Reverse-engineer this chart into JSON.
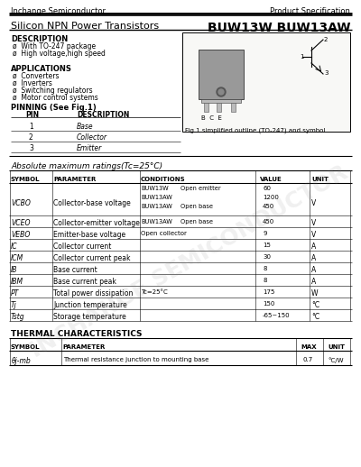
{
  "company": "Inchange Semiconductor",
  "product_spec": "Product Specification",
  "product_type": "Silicon NPN Power Transistors",
  "part_number": "BUW13W BUW13AW",
  "description_title": "DESCRIPTION",
  "description_items": [
    "ø  With TO-247 package",
    "ø  High voltage,high speed"
  ],
  "applications_title": "APPLICATIONS",
  "applications_items": [
    "ø  Converters",
    "ø  Inverters",
    "ø  Switching regulators",
    "ø  Motor control systems"
  ],
  "pinning_title": "PINNING (See Fig.1)",
  "pinning_headers": [
    "PIN",
    "DESCRIPTION"
  ],
  "pinning_rows": [
    [
      "1",
      "Base"
    ],
    [
      "2",
      "Collector"
    ],
    [
      "3",
      "Emitter"
    ]
  ],
  "fig_caption": "Fig.1 simplified outline (TO-247) and symbol",
  "abs_max_title": "Absolute maximum ratings(Tc=25°C)",
  "abs_headers": [
    "SYMBOL",
    "PARAMETER",
    "CONDITIONS",
    "VALUE",
    "UNIT"
  ],
  "vcbo_rows": [
    {
      "part": "BUW13W",
      "cond": "Open emitter",
      "val": "60"
    },
    {
      "part": "BUW13AW",
      "cond": "",
      "val": "1200"
    },
    {
      "part": "BUW13AW",
      "cond": "Open base",
      "val": "450"
    }
  ],
  "vceo_rows": [
    {
      "part": "BUW13AW",
      "cond": "Open base",
      "val": "450"
    }
  ],
  "simple_rows": [
    {
      "sym": "VEBO",
      "param": "Emitter-base voltage",
      "cond": "Open collector",
      "val": "9",
      "unit": "V"
    },
    {
      "sym": "IC",
      "param": "Collector current",
      "cond": "",
      "val": "15",
      "unit": "A"
    },
    {
      "sym": "ICM",
      "param": "Collector current peak",
      "cond": "",
      "val": "30",
      "unit": "A"
    },
    {
      "sym": "IB",
      "param": "Base current",
      "cond": "",
      "val": "8",
      "unit": "A"
    },
    {
      "sym": "IBM",
      "param": "Base current peak",
      "cond": "",
      "val": "8",
      "unit": "A"
    },
    {
      "sym": "PT",
      "param": "Total power dissipation",
      "cond": "Tc=25°C",
      "val": "175",
      "unit": "W"
    },
    {
      "sym": "Tj",
      "param": "Junction temperature",
      "cond": "",
      "val": "150",
      "unit": "°C"
    },
    {
      "sym": "Tstg",
      "param": "Storage temperature",
      "cond": "",
      "val": "-65~150",
      "unit": "°C"
    }
  ],
  "thermal_title": "THERMAL CHARACTERISTICS",
  "thermal_headers": [
    "SYMBOL",
    "PARAMETER",
    "MAX",
    "UNIT"
  ],
  "thermal_rows": [
    [
      "θj-mb",
      "Thermal resistance junction to mounting base",
      "0.7",
      "°C/W"
    ]
  ],
  "watermark": "INCHANGE SEMICONDUCTOR"
}
